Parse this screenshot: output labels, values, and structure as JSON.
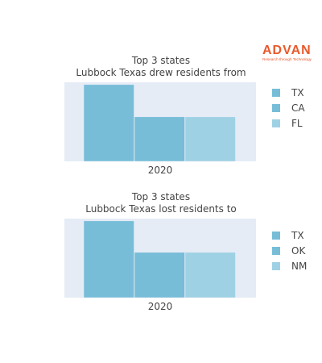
{
  "logo": {
    "word": "ADVAN",
    "tagline": "Research through Technology"
  },
  "colors": {
    "plot_bg": "#e5ecf6",
    "bar": [
      "#77bdd8",
      "#77bdd8",
      "#9fd1e4"
    ]
  },
  "chart_data": [
    {
      "type": "bar",
      "title_lines": [
        "Top 3 states",
        "Lubbock Texas drew residents from"
      ],
      "categories": [
        "2020"
      ],
      "series": [
        {
          "name": "TX",
          "values": [
            1.0
          ]
        },
        {
          "name": "CA",
          "values": [
            0.58
          ]
        },
        {
          "name": "FL",
          "values": [
            0.58
          ]
        }
      ],
      "ylim": [
        0,
        1.03
      ],
      "grid": true,
      "legend": "right"
    },
    {
      "type": "bar",
      "title_lines": [
        "Top 3 states",
        "Lubbock Texas lost residents to"
      ],
      "categories": [
        "2020"
      ],
      "series": [
        {
          "name": "TX",
          "values": [
            1.0
          ]
        },
        {
          "name": "OK",
          "values": [
            0.59
          ]
        },
        {
          "name": "NM",
          "values": [
            0.59
          ]
        }
      ],
      "ylim": [
        0,
        1.03
      ],
      "grid": true,
      "legend": "right"
    }
  ]
}
